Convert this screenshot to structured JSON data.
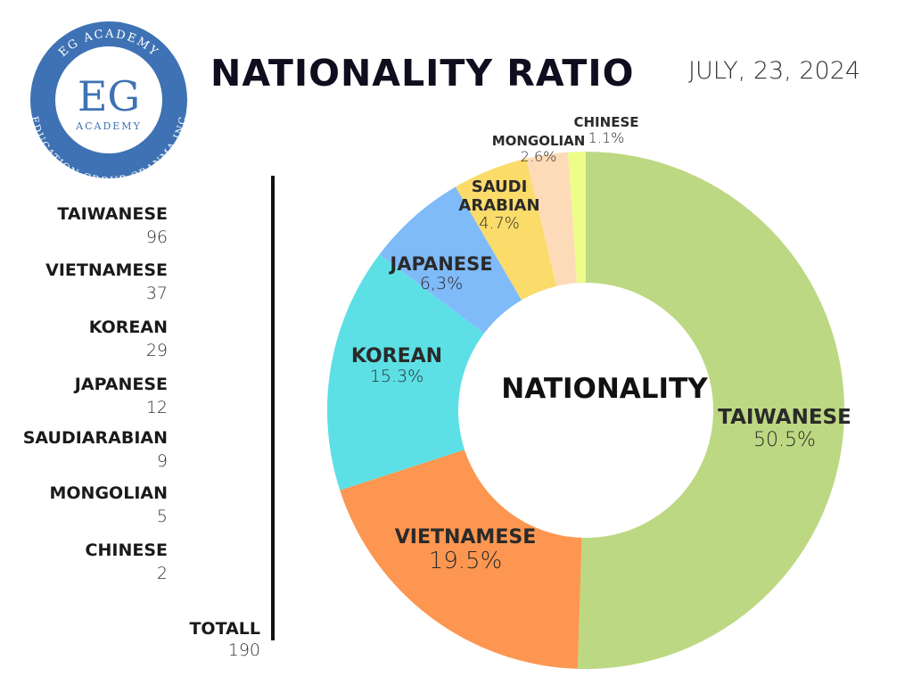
{
  "logo": {
    "top_text": "EG ACADEMY",
    "initials": "EG",
    "name": "ACADEMY",
    "bottom_text": "EDUCATION GROUP GRANMA INC"
  },
  "date": "JULY, 23, 2024",
  "counts": {
    "labels": [
      "TAIWANESE",
      "VIETNAMESE",
      "KOREAN",
      "JAPANESE",
      "SAUDIARABIAN",
      "MONGOLIAN",
      "CHINESE"
    ],
    "values": [
      96,
      37,
      29,
      12,
      9,
      5,
      2
    ],
    "total_label": "TOTALL",
    "total": 190
  },
  "chart_data": {
    "type": "pie",
    "donut": true,
    "title": "NATIONALITY RATIO",
    "center_label": "NATIONALITY",
    "categories": [
      "TAIWANESE",
      "VIETNAMESE",
      "KOREAN",
      "JAPANESE",
      "SAUDI ARABIAN",
      "MONGOLIAN",
      "CHINESE"
    ],
    "values": [
      50.5,
      19.5,
      15.3,
      6.3,
      4.7,
      2.6,
      1.1
    ],
    "value_labels": [
      "50.5%",
      "19.5%",
      "15.3%",
      "6,3%",
      "4.7%",
      "2.6%",
      "1.1%"
    ],
    "colors": [
      "#bdd882",
      "#fd9650",
      "#5ce0e5",
      "#7fbaf9",
      "#fbdb6a",
      "#fedbb8",
      "#eefc8a"
    ]
  }
}
